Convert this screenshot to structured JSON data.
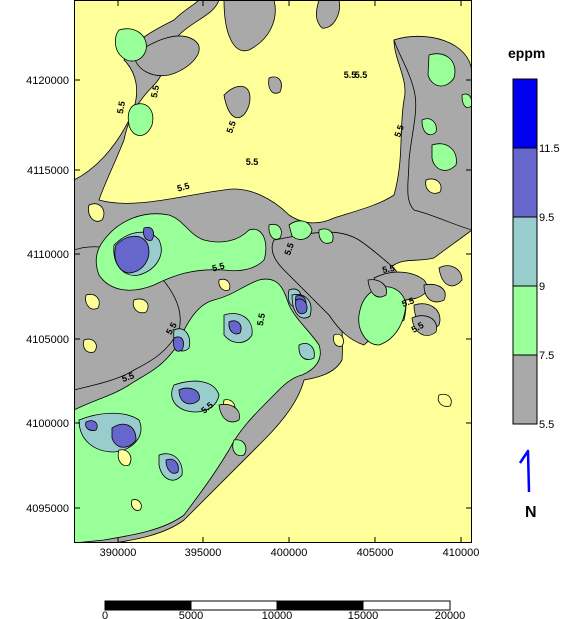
{
  "map": {
    "fill_color": "#FFFF99",
    "x_ticks": [
      "390000",
      "395000",
      "400000",
      "405000",
      "410000"
    ],
    "y_ticks": [
      "4095000",
      "4100000",
      "4105000",
      "4110000",
      "4115000",
      "4120000"
    ],
    "contour_labels": [
      "5.5",
      "5.5",
      "5.5",
      "5.5",
      "5.5",
      "5.5",
      "5.5",
      "5.5",
      "5.5",
      "5.5",
      "5.5",
      "5.5",
      "5.5",
      "5.5",
      "5.5",
      "5.5",
      "5.5"
    ]
  },
  "legend": {
    "title": "eppm",
    "levels": [
      "5.5",
      "7.5",
      "9",
      "9.5",
      "11.5"
    ],
    "colors": [
      "#A9A9A9",
      "#99FF99",
      "#99CCCC",
      "#6666CC",
      "#0000EE"
    ]
  },
  "north_arrow": {
    "label": "N",
    "color": "#0000FF"
  },
  "scale_bar": {
    "labels": [
      "0",
      "5000",
      "10000",
      "15000",
      "20000"
    ]
  }
}
